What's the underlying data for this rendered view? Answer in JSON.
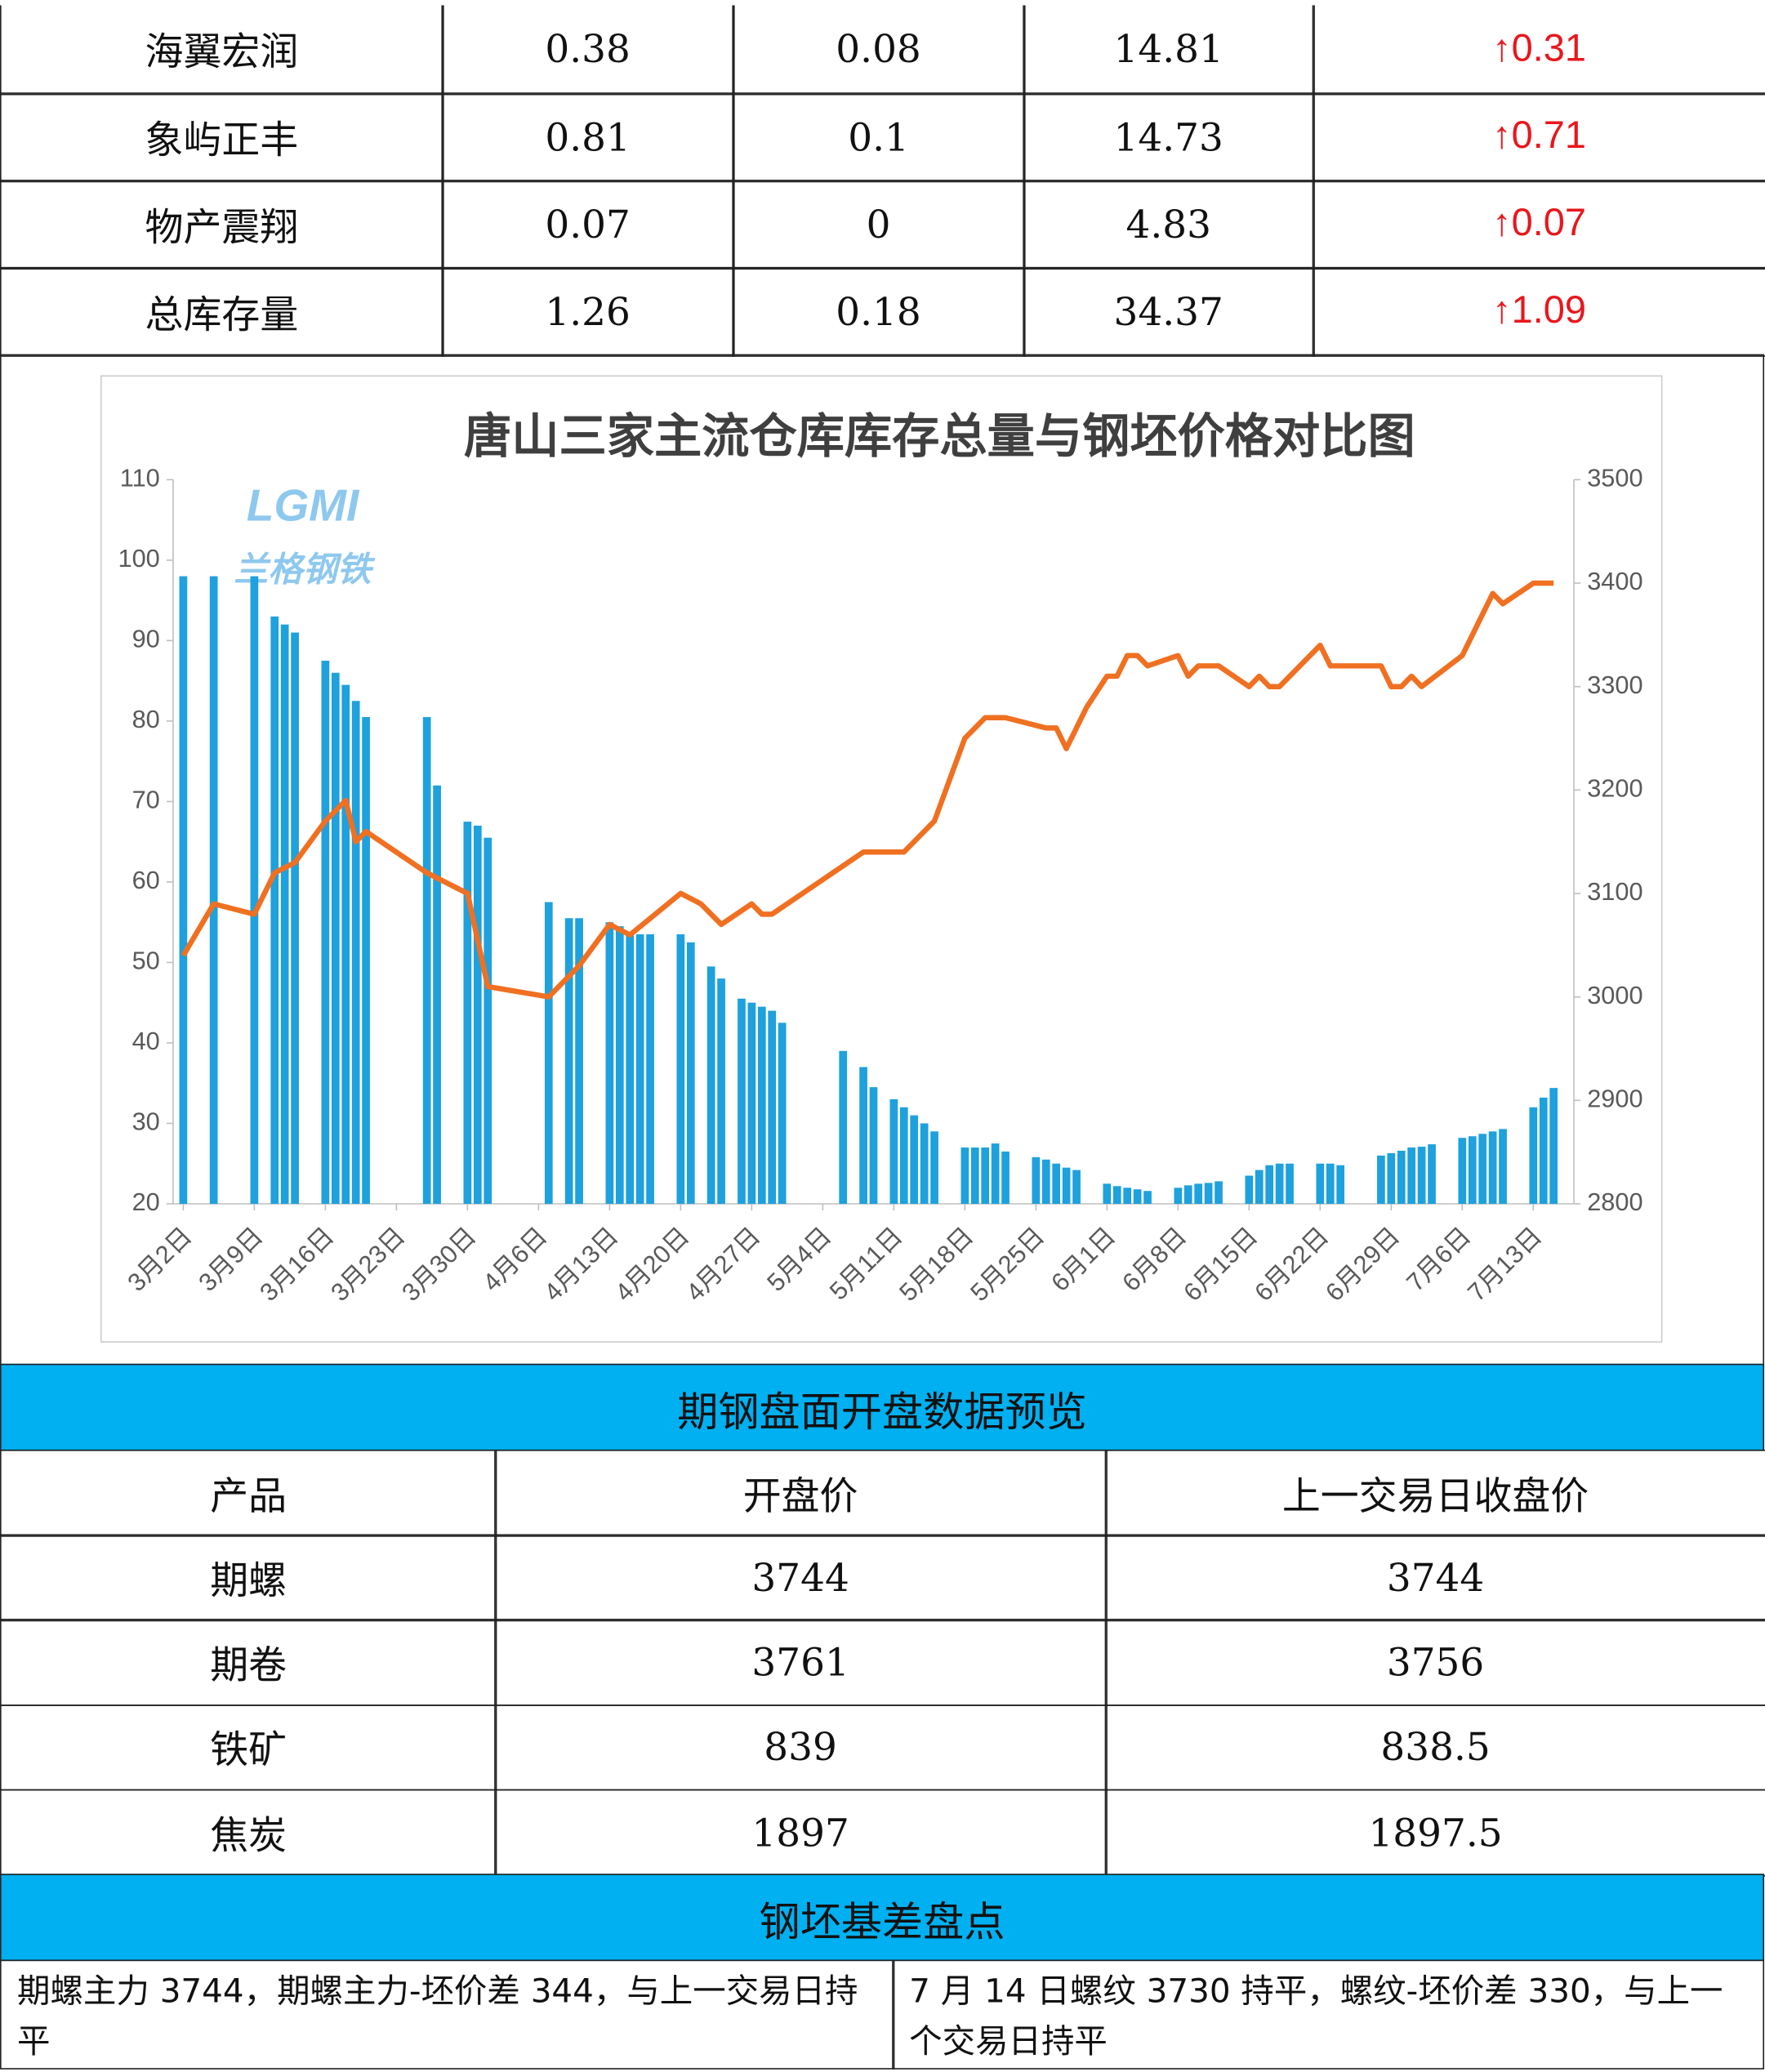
{
  "top_table": {
    "rows": [
      [
        "海翼宏润",
        "0.38",
        "0.08",
        "14.81",
        "↑0.31"
      ],
      [
        "象屿正丰",
        "0.81",
        "0.1",
        "14.73",
        "↑0.71"
      ],
      [
        "物产震翔",
        "0.07",
        "0",
        "4.83",
        "↑0.07"
      ],
      [
        "总库存量",
        "1.26",
        "0.18",
        "34.37",
        "↑1.09"
      ]
    ]
  },
  "chart": {
    "type": "bar-line",
    "title": "唐山三家主流仓库库存总量与钢坯价格对比图",
    "watermark": [
      "LGMI",
      "兰格钢铁"
    ],
    "xlim": [
      -1,
      137
    ],
    "xticks": [
      {
        "value": 0,
        "label": "3月2日"
      },
      {
        "value": 7,
        "label": "3月9日"
      },
      {
        "value": 14,
        "label": "3月16日"
      },
      {
        "value": 21,
        "label": "3月23日"
      },
      {
        "value": 28,
        "label": "3月30日"
      },
      {
        "value": 35,
        "label": "4月6日"
      },
      {
        "value": 42,
        "label": "4月13日"
      },
      {
        "value": 49,
        "label": "4月20日"
      },
      {
        "value": 56,
        "label": "4月27日"
      },
      {
        "value": 63,
        "label": "5月4日"
      },
      {
        "value": 70,
        "label": "5月11日"
      },
      {
        "value": 77,
        "label": "5月18日"
      },
      {
        "value": 84,
        "label": "5月25日"
      },
      {
        "value": 91,
        "label": "6月1日"
      },
      {
        "value": 98,
        "label": "6月8日"
      },
      {
        "value": 105,
        "label": "6月15日"
      },
      {
        "value": 112,
        "label": "6月22日"
      },
      {
        "value": 119,
        "label": "6月29日"
      },
      {
        "value": 126,
        "label": "7月6日"
      },
      {
        "value": 133,
        "label": "7月13日"
      }
    ],
    "ylim": [
      20,
      110
    ],
    "yticks": [
      20,
      30,
      40,
      50,
      60,
      70,
      80,
      90,
      100,
      110
    ],
    "y2lim": [
      2800,
      3500
    ],
    "y2ticks": [
      2800,
      2900,
      3000,
      3100,
      3200,
      3300,
      3400,
      3500
    ],
    "series": [
      {
        "type": "bar",
        "color": "#1ea1dd",
        "axis": "y",
        "x": [
          0,
          3,
          7,
          9,
          10,
          11,
          14,
          15,
          16,
          17,
          18,
          24,
          25,
          28,
          29,
          30,
          36,
          38,
          39,
          42,
          43,
          44,
          45,
          46,
          49,
          50,
          52,
          53,
          55,
          56,
          57,
          58,
          59,
          65,
          67,
          68,
          70,
          71,
          72,
          73,
          74,
          77,
          78,
          79,
          80,
          81,
          84,
          85,
          86,
          87,
          88,
          91,
          92,
          93,
          94,
          95,
          98,
          99,
          100,
          101,
          102,
          105,
          106,
          107,
          108,
          109,
          112,
          113,
          114,
          118,
          119,
          120,
          121,
          122,
          123,
          126,
          127,
          128,
          129,
          130,
          133,
          134,
          135
        ],
        "values": [
          98,
          98,
          98,
          93,
          92,
          91,
          87.5,
          86,
          84.5,
          82.5,
          80.5,
          80.5,
          72,
          67.5,
          67,
          65.5,
          57.5,
          55.5,
          55.5,
          55,
          54.5,
          53.5,
          53.5,
          53.5,
          53.5,
          52.5,
          49.5,
          48,
          45.5,
          45,
          44.5,
          44,
          42.5,
          39,
          37,
          34.5,
          33,
          32,
          31,
          30,
          29,
          27,
          27,
          27,
          27.5,
          26.5,
          25.8,
          25.5,
          25,
          24.5,
          24.2,
          22.5,
          22.2,
          22,
          21.8,
          21.6,
          22,
          22.3,
          22.5,
          22.6,
          22.8,
          23.5,
          24.2,
          24.8,
          25,
          25,
          25,
          25,
          24.8,
          26,
          26.3,
          26.6,
          27,
          27.1,
          27.4,
          28.2,
          28.4,
          28.7,
          29,
          29.3,
          32,
          33.2,
          34.4
        ]
      },
      {
        "type": "line",
        "color": "#f07022",
        "axis": "y2",
        "x": [
          0,
          3,
          7,
          9,
          11,
          14,
          16,
          17,
          18,
          24,
          28,
          30,
          36,
          39,
          42,
          44,
          49,
          51,
          53,
          56,
          57,
          58,
          67,
          71,
          74,
          77,
          79,
          81,
          85,
          86,
          87,
          89,
          91,
          92,
          93,
          94,
          95,
          98,
          99,
          100,
          102,
          105,
          106,
          107,
          108,
          112,
          113,
          118,
          119,
          120,
          121,
          122,
          126,
          129,
          130,
          133,
          135
        ],
        "values": [
          3040,
          3090,
          3080,
          3120,
          3130,
          3170,
          3190,
          3150,
          3160,
          3120,
          3100,
          3010,
          3000,
          3030,
          3070,
          3060,
          3100,
          3090,
          3070,
          3090,
          3080,
          3080,
          3140,
          3140,
          3170,
          3250,
          3270,
          3270,
          3260,
          3260,
          3240,
          3280,
          3310,
          3310,
          3330,
          3330,
          3320,
          3330,
          3310,
          3320,
          3320,
          3300,
          3310,
          3300,
          3300,
          3340,
          3320,
          3320,
          3300,
          3300,
          3310,
          3300,
          3330,
          3390,
          3380,
          3400,
          3400
        ]
      }
    ]
  },
  "futures": {
    "heading": "期钢盘面开盘数据预览",
    "columns": [
      "产品",
      "开盘价",
      "上一交易日收盘价"
    ],
    "rows": [
      [
        "期螺",
        "3744",
        "3744"
      ],
      [
        "期卷",
        "3761",
        "3756"
      ],
      [
        "铁矿",
        "839",
        "838.5"
      ],
      [
        "焦炭",
        "1897",
        "1897.5"
      ]
    ]
  },
  "basis": {
    "heading": "钢坯基差盘点",
    "cells": [
      "期螺主力 3744，期螺主力-坯价差 344，与上一交易日持平",
      "7 月 14 日螺纹 3730 持平，螺纹-坯价差 330，与上一个交易日持平"
    ]
  }
}
